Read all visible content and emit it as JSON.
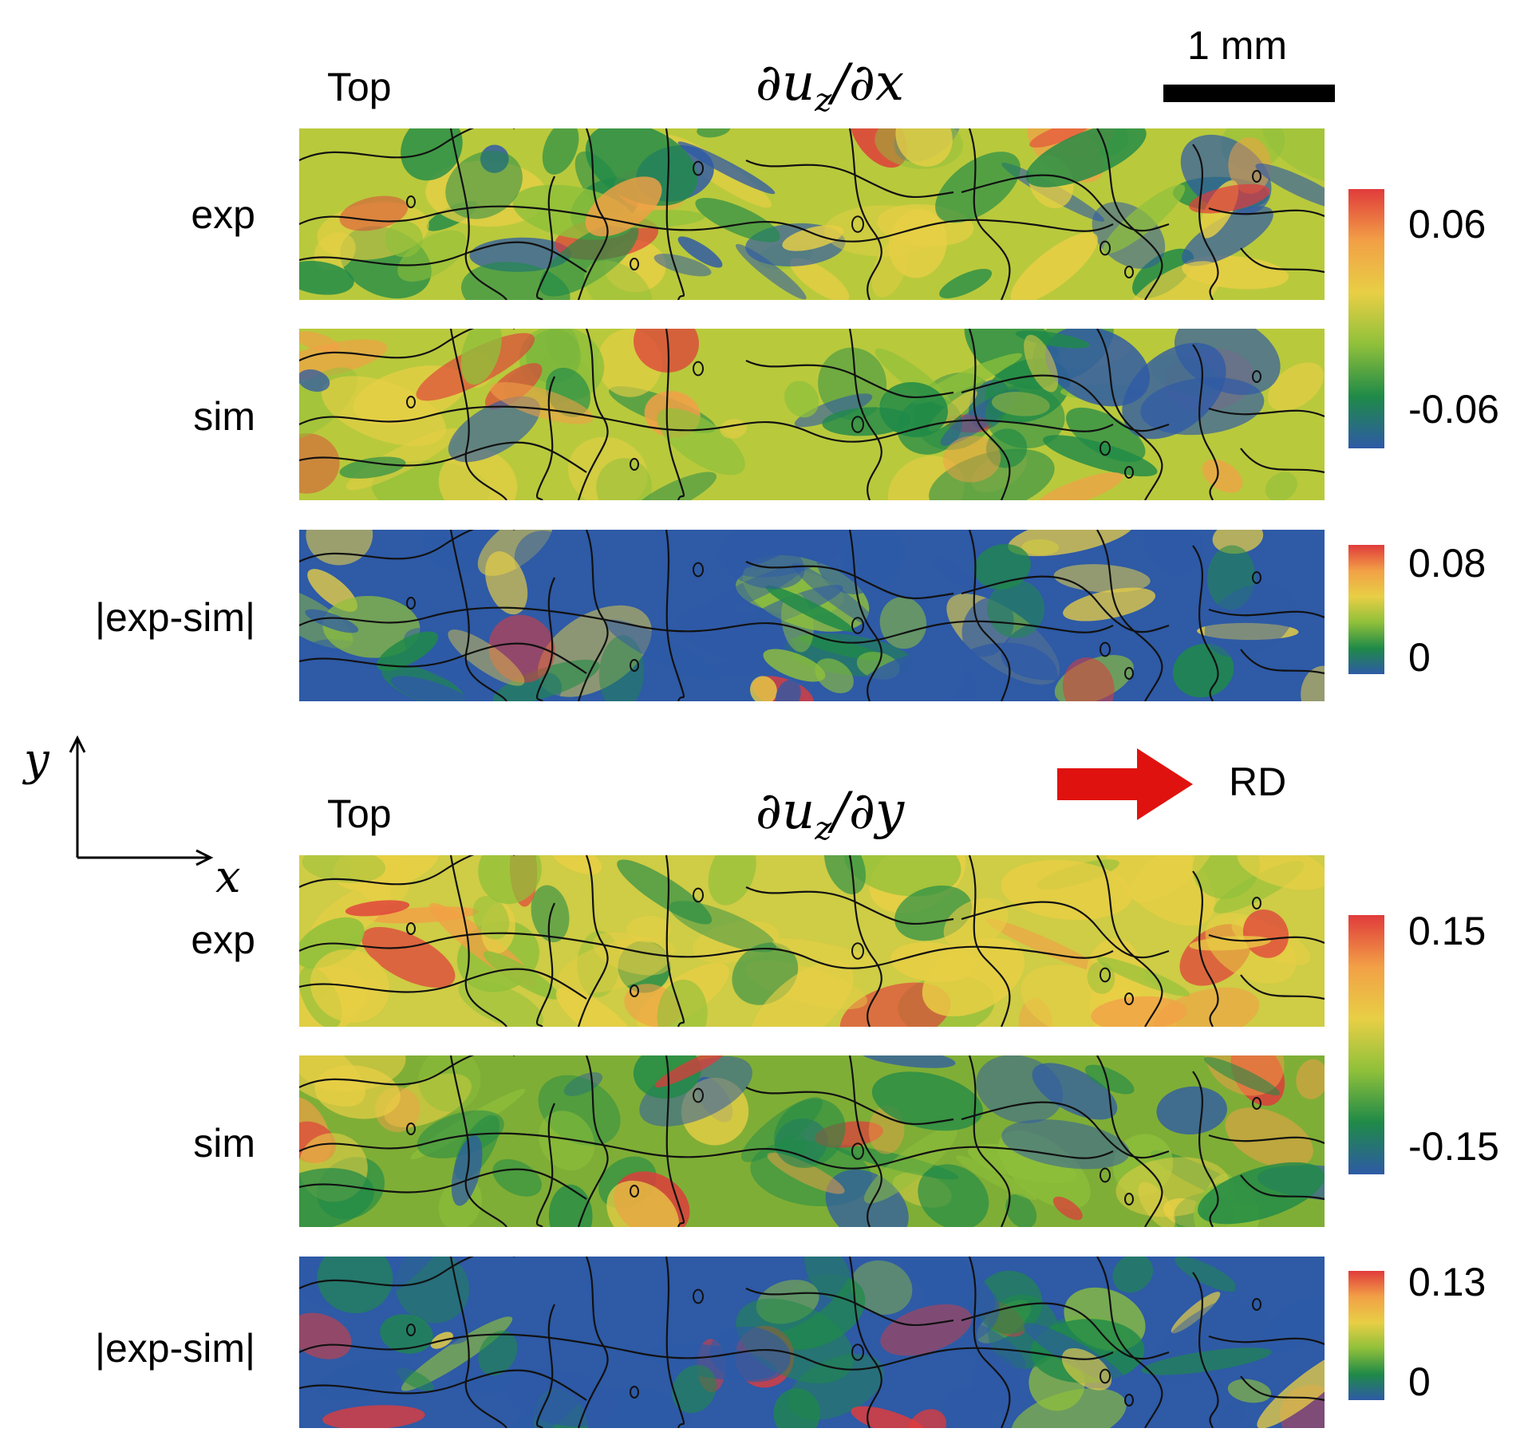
{
  "scale_bar": {
    "label": "1 mm"
  },
  "direction": {
    "label": "RD",
    "arrow_color": "#e0120f"
  },
  "axes": {
    "x": "x",
    "y": "y"
  },
  "sections": [
    {
      "id": "dudx",
      "corner_label": "Top",
      "title": "∂u",
      "title_sub": "z",
      "title_rest": "/∂x",
      "rows": [
        "exp",
        "sim",
        "|exp-sim|"
      ],
      "colorbars": [
        {
          "max": "0.06",
          "min": "-0.06"
        },
        {
          "max": "0.08",
          "min": "0"
        }
      ]
    },
    {
      "id": "dudy",
      "corner_label": "Top",
      "title": "∂u",
      "title_sub": "z",
      "title_rest": "/∂y",
      "rows": [
        "exp",
        "sim",
        "|exp-sim|"
      ],
      "colorbars": [
        {
          "max": "0.15",
          "min": "-0.15"
        },
        {
          "max": "0.13",
          "min": "0"
        }
      ]
    }
  ],
  "colormap": [
    "#2e5aa6",
    "#1f8a48",
    "#8fc03a",
    "#e8cf45",
    "#f2a046",
    "#e03b3b"
  ]
}
